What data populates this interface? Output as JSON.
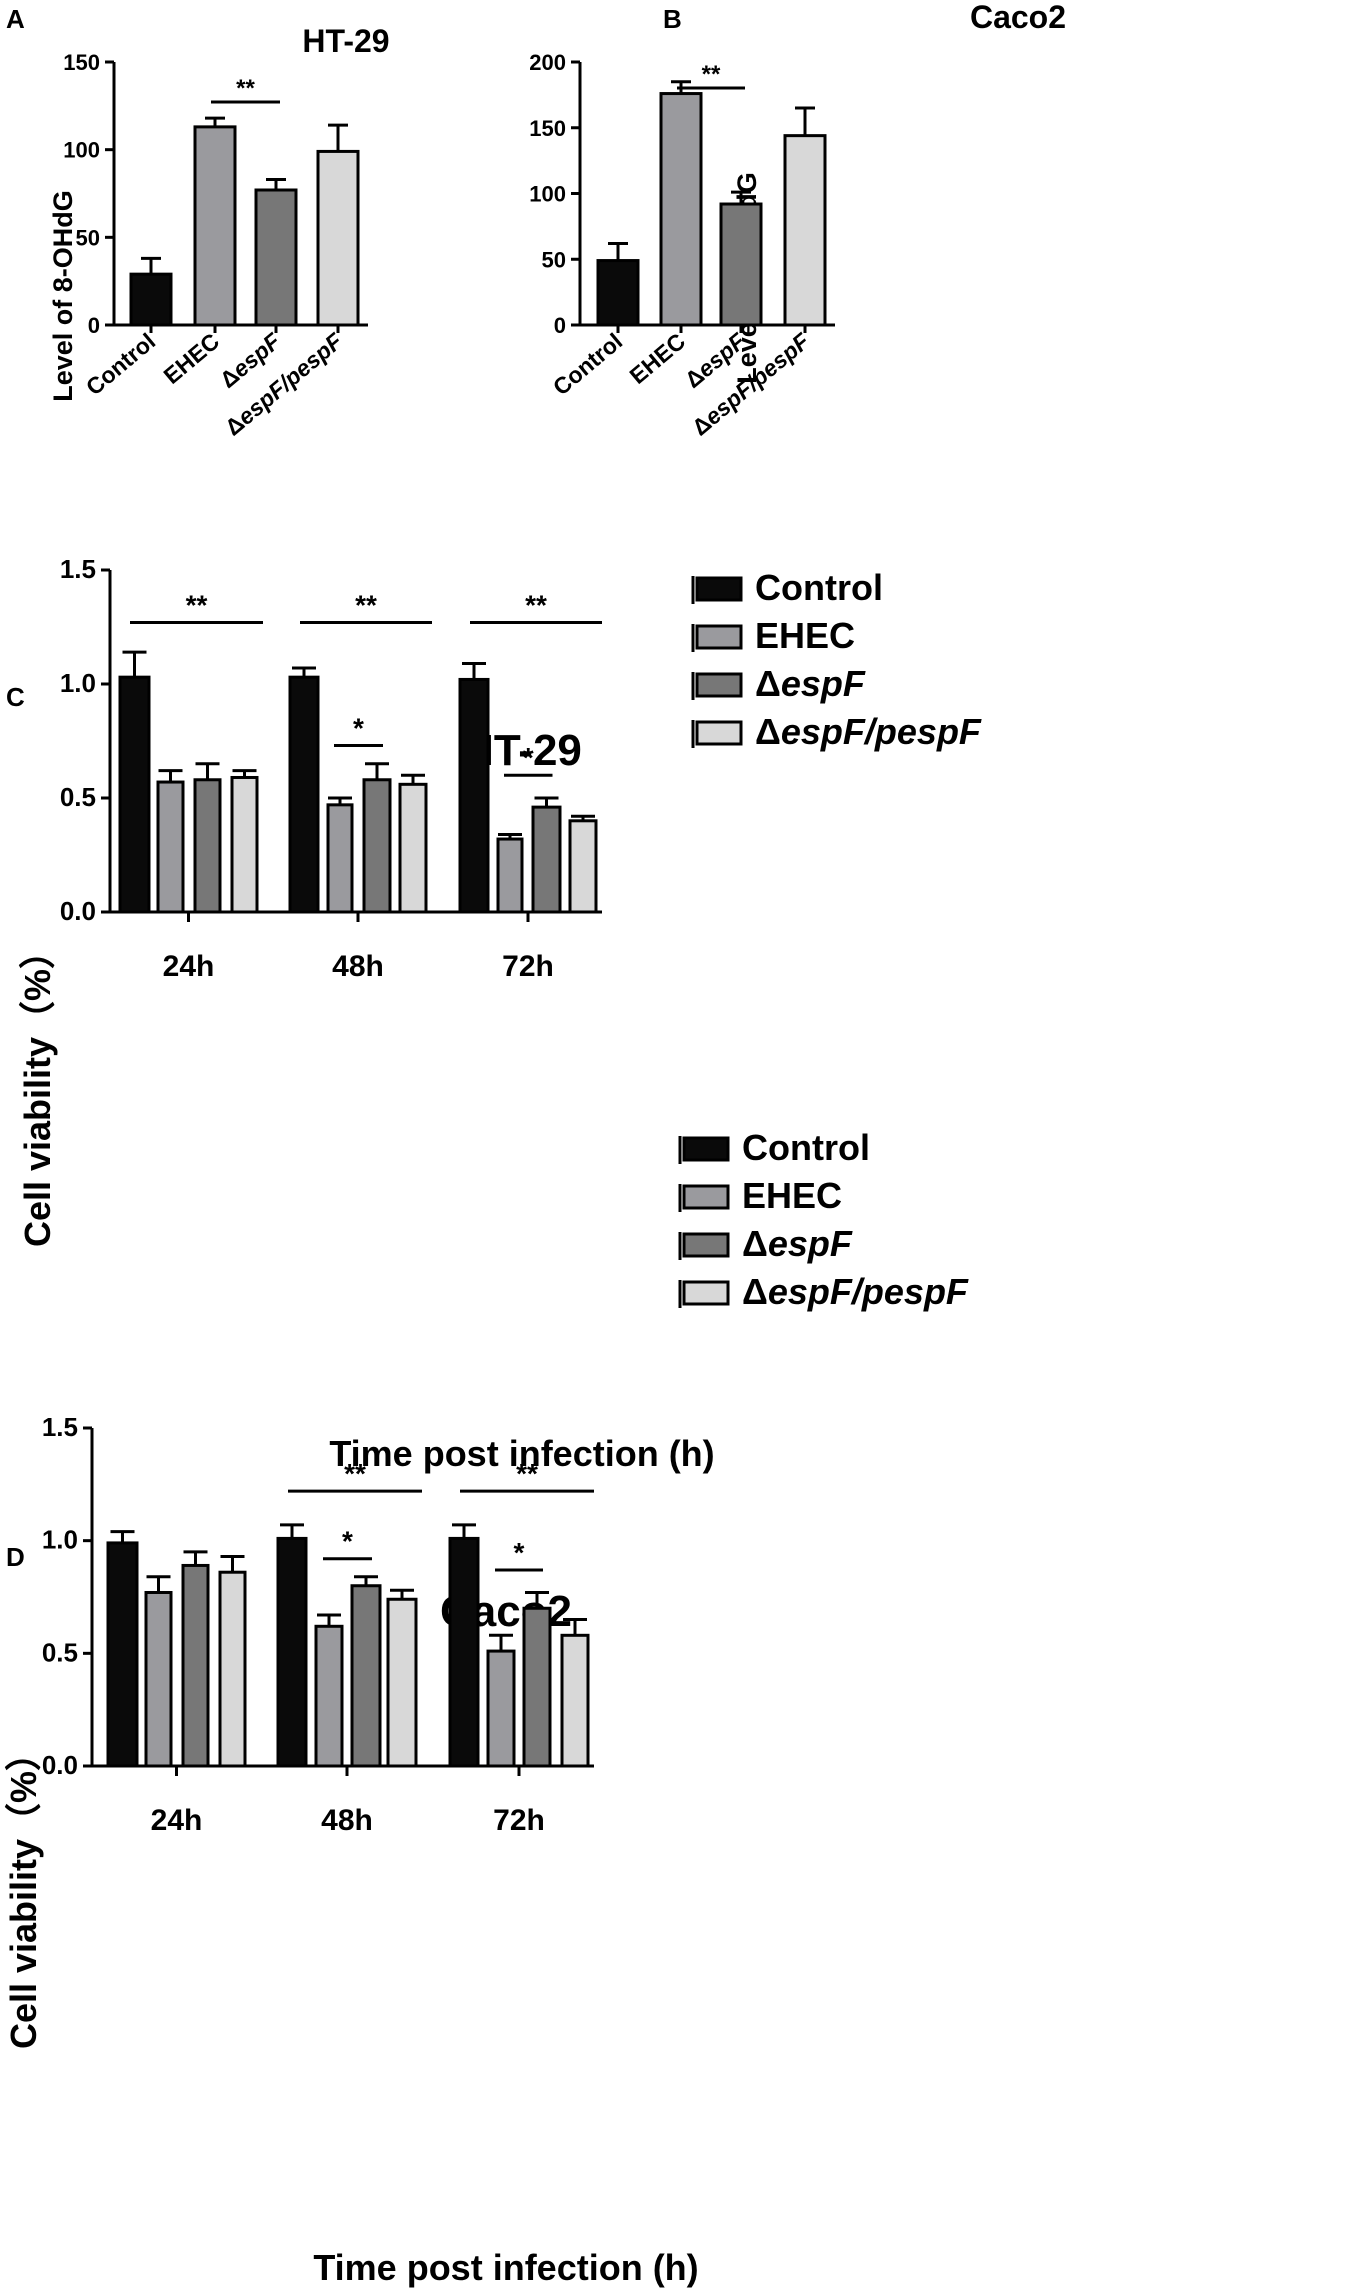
{
  "colors": {
    "Control": "#0a0a0a",
    "EHEC": "#9a9a9e",
    "espF": "#777777",
    "espF_pespF": "#d8d8d8"
  },
  "legend_labels": [
    {
      "key": "Control",
      "prefix": "",
      "italic": "",
      "suffix": "Control"
    },
    {
      "key": "EHEC",
      "prefix": "",
      "italic": "",
      "suffix": "EHEC"
    },
    {
      "key": "espF",
      "prefix": "Δ",
      "italic": "espF",
      "suffix": ""
    },
    {
      "key": "espF_pespF",
      "prefix": "Δ",
      "italic": "espF",
      "suffix": "/pespF"
    }
  ],
  "chart_data": [
    {
      "panel": "A",
      "type": "bar",
      "title": "HT-29",
      "ylabel": "Level of 8-OHdG",
      "ylim": [
        0,
        150
      ],
      "yticks": [
        0,
        50,
        100,
        150
      ],
      "categories": [
        "Control",
        "EHEC",
        "ΔespF",
        "ΔespF/pespF"
      ],
      "values": [
        29,
        113,
        77,
        99
      ],
      "errors": [
        9,
        5,
        6,
        15
      ],
      "significance": [
        {
          "from": 1,
          "to": 2,
          "label": "**"
        }
      ]
    },
    {
      "panel": "B",
      "type": "bar",
      "title": "Caco2",
      "ylabel": "Level of 8-OHdG",
      "ylim": [
        0,
        200
      ],
      "yticks": [
        0,
        50,
        100,
        150,
        200
      ],
      "categories": [
        "Control",
        "EHEC",
        "ΔespF",
        "ΔespF/pespF"
      ],
      "values": [
        49,
        176,
        92,
        144
      ],
      "errors": [
        13,
        9,
        9,
        21
      ],
      "significance": [
        {
          "from": 1,
          "to": 2,
          "label": "**"
        }
      ]
    },
    {
      "panel": "C",
      "type": "bar",
      "title": "HT-29",
      "xlabel": "Time post infection (h)",
      "ylabel": "Cell viability（%）",
      "ylim": [
        0,
        1.5
      ],
      "yticks": [
        "0.0",
        "0.5",
        "1.0",
        "1.5"
      ],
      "categories": [
        "24h",
        "48h",
        "72h"
      ],
      "series": [
        {
          "name": "Control",
          "values": [
            1.03,
            1.03,
            1.02
          ],
          "errors": [
            0.11,
            0.04,
            0.07
          ]
        },
        {
          "name": "EHEC",
          "values": [
            0.57,
            0.47,
            0.32
          ],
          "errors": [
            0.05,
            0.03,
            0.02
          ]
        },
        {
          "name": "ΔespF",
          "values": [
            0.58,
            0.58,
            0.46
          ],
          "errors": [
            0.07,
            0.07,
            0.04
          ]
        },
        {
          "name": "ΔespF/pespF",
          "values": [
            0.59,
            0.56,
            0.4
          ],
          "errors": [
            0.03,
            0.04,
            0.02
          ]
        }
      ],
      "significance": [
        {
          "group": 0,
          "from": 0,
          "to": 3,
          "label": "**",
          "y": 1.27
        },
        {
          "group": 1,
          "from": 0,
          "to": 3,
          "label": "**",
          "y": 1.27
        },
        {
          "group": 1,
          "from": 1,
          "to": 2,
          "label": "*",
          "y": 0.73
        },
        {
          "group": 2,
          "from": 0,
          "to": 3,
          "label": "**",
          "y": 1.27
        },
        {
          "group": 2,
          "from": 1,
          "to": 2,
          "label": "*",
          "y": 0.6
        }
      ],
      "legend": "right"
    },
    {
      "panel": "D",
      "type": "bar",
      "title": "Caco2",
      "xlabel": "Time post infection (h)",
      "ylabel": "Cell viability（%）",
      "ylim": [
        0,
        1.5
      ],
      "yticks": [
        "0.0",
        "0.5",
        "1.0",
        "1.5"
      ],
      "categories": [
        "24h",
        "48h",
        "72h"
      ],
      "series": [
        {
          "name": "Control",
          "values": [
            0.99,
            1.01,
            1.01
          ],
          "errors": [
            0.05,
            0.06,
            0.06
          ]
        },
        {
          "name": "EHEC",
          "values": [
            0.77,
            0.62,
            0.51
          ],
          "errors": [
            0.07,
            0.05,
            0.07
          ]
        },
        {
          "name": "ΔespF",
          "values": [
            0.89,
            0.8,
            0.7
          ],
          "errors": [
            0.06,
            0.04,
            0.07
          ]
        },
        {
          "name": "ΔespF/pespF",
          "values": [
            0.86,
            0.74,
            0.58
          ],
          "errors": [
            0.07,
            0.04,
            0.07
          ]
        }
      ],
      "significance": [
        {
          "group": 1,
          "from": 0,
          "to": 3,
          "label": "**",
          "y": 1.22
        },
        {
          "group": 1,
          "from": 1,
          "to": 2,
          "label": "*",
          "y": 0.92
        },
        {
          "group": 2,
          "from": 0,
          "to": 3,
          "label": "**",
          "y": 1.22
        },
        {
          "group": 2,
          "from": 1,
          "to": 2,
          "label": "*",
          "y": 0.87
        }
      ],
      "legend": "right"
    }
  ]
}
